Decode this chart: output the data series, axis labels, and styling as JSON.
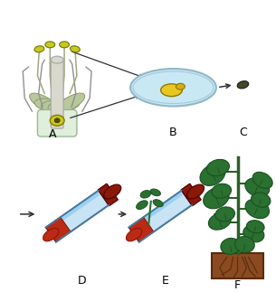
{
  "bg_color": "#ffffff",
  "label_A": "A",
  "label_B": "B",
  "label_C": "C",
  "label_D": "D",
  "label_E": "E",
  "label_F": "F",
  "label_fontsize": 9,
  "colors": {
    "anther_yellow": "#c8c820",
    "ovary_light": "#e8f0e0",
    "pistil_gray": "#d0d0c0",
    "sepal_green": "#b0c090",
    "petri_fill": "#c8e8f4",
    "petri_border": "#90b8c8",
    "embryo_yellow": "#e8c820",
    "seed_dark": "#3a4020",
    "tube_blue_light": "#c0dff0",
    "tube_blue_bright": "#80c0e8",
    "tube_dark_red": "#aa2010",
    "tube_med_red": "#cc3020",
    "cork_dark": "#7a1808",
    "leaf_green": "#2a7030",
    "leaf_dark": "#1a5020",
    "stem_green": "#2a6028",
    "soil_brown": "#8b4a20",
    "soil_border": "#5a2a10",
    "root_brown": "#6a3818",
    "arrow_color": "#303030"
  }
}
